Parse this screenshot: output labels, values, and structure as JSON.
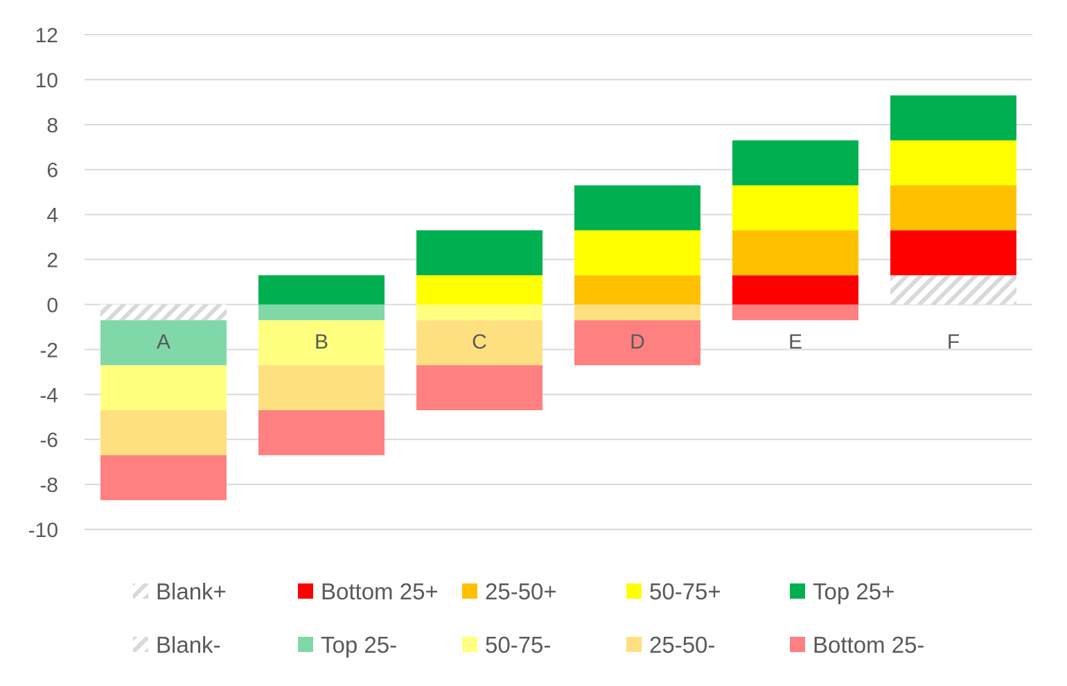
{
  "chart_data": {
    "type": "bar",
    "stacked": true,
    "categories": [
      "A",
      "B",
      "C",
      "D",
      "E",
      "F"
    ],
    "ylim": [
      -10,
      12
    ],
    "yticks": [
      12,
      10,
      8,
      6,
      4,
      2,
      0,
      -2,
      -4,
      -6,
      -8,
      -10
    ],
    "grid": true,
    "legend_position": "bottom",
    "series": [
      {
        "name": "Blank+",
        "color": "#d9d9d9",
        "pattern": "hatch",
        "values": [
          0,
          0,
          0,
          0,
          0,
          1.3
        ]
      },
      {
        "name": "Bottom 25+",
        "color": "#ff0000",
        "values": [
          0,
          0,
          0,
          0,
          1.3,
          2
        ]
      },
      {
        "name": "25-50+",
        "color": "#ffc000",
        "values": [
          0,
          0,
          0,
          1.3,
          2,
          2
        ]
      },
      {
        "name": "50-75+",
        "color": "#ffff00",
        "values": [
          0,
          0,
          1.3,
          2,
          2,
          2
        ]
      },
      {
        "name": "Top 25+",
        "color": "#00b050",
        "values": [
          0,
          1.3,
          2,
          2,
          2,
          2
        ]
      },
      {
        "name": "Blank-",
        "color": "#d9d9d9",
        "pattern": "hatch",
        "values": [
          -0.7,
          0,
          0,
          0,
          0,
          0
        ]
      },
      {
        "name": "Top 25-",
        "color": "#80d8a8",
        "values": [
          -2,
          -0.7,
          0,
          0,
          0,
          0
        ]
      },
      {
        "name": "50-75-",
        "color": "#ffff80",
        "values": [
          -2,
          -2,
          -0.7,
          0,
          0,
          0
        ]
      },
      {
        "name": "25-50-",
        "color": "#ffe080",
        "values": [
          -2,
          -2,
          -2,
          -0.7,
          0,
          0
        ]
      },
      {
        "name": "Bottom 25-",
        "color": "#ff8080",
        "values": [
          -2,
          -2,
          -2,
          -2,
          -0.7,
          0
        ]
      }
    ]
  }
}
